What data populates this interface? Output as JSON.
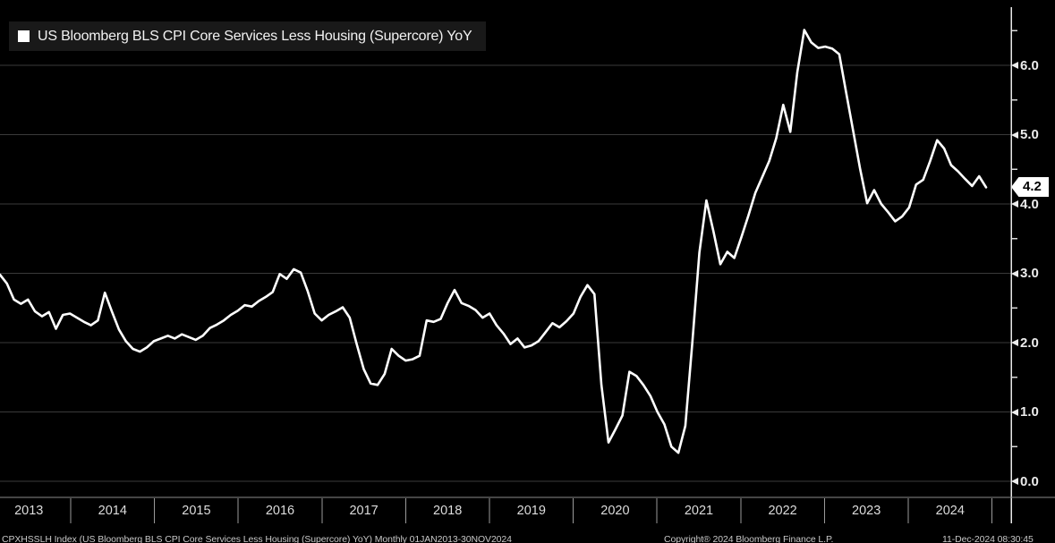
{
  "legend": {
    "swatch_color": "#ffffff",
    "label": "US Bloomberg BLS CPI Core Services Less Housing (Supercore) YoY"
  },
  "last_value_tag": "4.2",
  "colors": {
    "background": "#000000",
    "line": "#ffffff",
    "grid": "#3a3a3a",
    "axis": "#e8e8e8",
    "minor_tick": "#d8d8d8",
    "tick_label": "#ececec",
    "year_label": "#dcdcdc",
    "year_separator": "#9a9a9a",
    "band_line": "#8a8a8a",
    "legend_bg": "#191919",
    "tag_bg": "#ffffff",
    "tag_text": "#000000"
  },
  "yaxis": {
    "tick_labels": [
      "6.0",
      "5.0",
      "4.0",
      "3.0",
      "2.0",
      "1.0",
      "0.0"
    ],
    "tick_values": [
      6,
      5,
      4,
      3,
      2,
      1,
      0
    ],
    "minor_step": 0.5
  },
  "xaxis": {
    "years": [
      "2013",
      "2014",
      "2015",
      "2016",
      "2017",
      "2018",
      "2019",
      "2020",
      "2021",
      "2022",
      "2023",
      "2024"
    ]
  },
  "footer": {
    "left": "CPXHSSLH Index (US Bloomberg BLS CPI Core Services Less Housing (Supercore) YoY)  Monthly 01JAN2013-30NOV2024",
    "center": "Copyright® 2024 Bloomberg Finance L.P.",
    "right": "11-Dec-2024 08:30:45"
  },
  "chart_data": {
    "type": "line",
    "title": "US Bloomberg BLS CPI Core Services Less Housing (Supercore) YoY",
    "unit": "%",
    "ylim": [
      0,
      6.85
    ],
    "yticks": [
      0,
      1,
      2,
      3,
      4,
      5,
      6
    ],
    "grid": true,
    "legend_position": "top-left",
    "x_years": [
      2013,
      2014,
      2015,
      2016,
      2017,
      2018,
      2019,
      2020,
      2021,
      2022,
      2023,
      2024
    ],
    "last_value": 4.2,
    "series": [
      {
        "name": "US Bloomberg BLS CPI Core Services Less Housing (Supercore) YoY",
        "start": "2013-02",
        "frequency": "monthly",
        "values": [
          2.98,
          2.85,
          2.62,
          2.56,
          2.62,
          2.45,
          2.38,
          2.44,
          2.2,
          2.4,
          2.42,
          2.36,
          2.3,
          2.25,
          2.32,
          2.72,
          2.45,
          2.19,
          2.02,
          1.91,
          1.87,
          1.93,
          2.02,
          2.06,
          2.1,
          2.06,
          2.12,
          2.08,
          2.04,
          2.1,
          2.21,
          2.26,
          2.32,
          2.4,
          2.46,
          2.54,
          2.52,
          2.6,
          2.66,
          2.73,
          2.99,
          2.92,
          3.06,
          3.01,
          2.74,
          2.42,
          2.32,
          2.4,
          2.45,
          2.51,
          2.36,
          1.98,
          1.62,
          1.41,
          1.39,
          1.55,
          1.91,
          1.81,
          1.74,
          1.76,
          1.81,
          2.32,
          2.3,
          2.34,
          2.57,
          2.76,
          2.57,
          2.53,
          2.47,
          2.36,
          2.42,
          2.25,
          2.13,
          1.98,
          2.06,
          1.93,
          1.96,
          2.02,
          2.15,
          2.28,
          2.22,
          2.31,
          2.42,
          2.66,
          2.83,
          2.7,
          1.39,
          0.56,
          0.75,
          0.95,
          1.58,
          1.52,
          1.39,
          1.23,
          1.0,
          0.82,
          0.5,
          0.41,
          0.8,
          2.0,
          3.3,
          4.05,
          3.61,
          3.13,
          3.31,
          3.22,
          3.52,
          3.83,
          4.16,
          4.39,
          4.62,
          4.95,
          5.43,
          5.04,
          5.9,
          6.51,
          6.33,
          6.25,
          6.27,
          6.24,
          6.16,
          5.6,
          5.05,
          4.5,
          4.01,
          4.2,
          4.0,
          3.88,
          3.75,
          3.82,
          3.95,
          4.28,
          4.35,
          4.62,
          4.92,
          4.8,
          4.56,
          4.47,
          4.36,
          4.26,
          4.4,
          4.24
        ]
      }
    ]
  }
}
